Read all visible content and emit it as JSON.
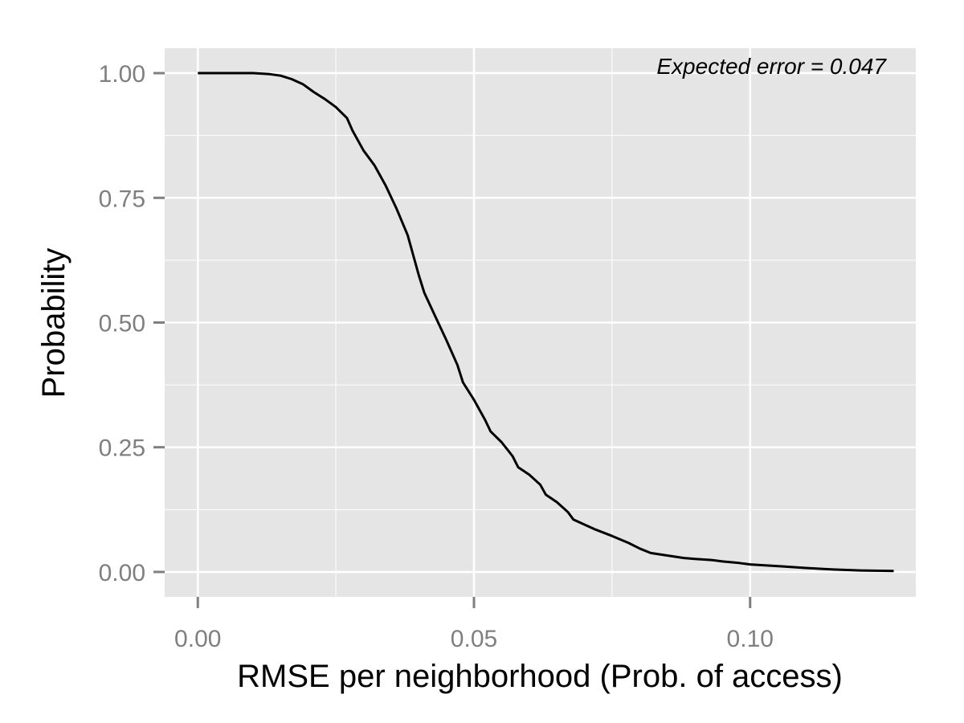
{
  "chart_data": {
    "type": "line",
    "title": "",
    "xlabel": "RMSE per neighborhood (Prob. of access)",
    "ylabel": "Probability",
    "xlim": [
      -0.006,
      0.13
    ],
    "ylim": [
      -0.05,
      1.05
    ],
    "x_ticks": [
      0.0,
      0.05,
      0.1
    ],
    "x_tick_labels": [
      "0.00",
      "0.05",
      "0.10"
    ],
    "y_ticks": [
      0.0,
      0.25,
      0.5,
      0.75,
      1.0
    ],
    "y_tick_labels": [
      "0.00",
      "0.25",
      "0.50",
      "0.75",
      "1.00"
    ],
    "grid": true,
    "annotation": "Expected error = 0.047",
    "colors": {
      "panel": "#e5e5e5",
      "grid": "#ffffff",
      "line": "#000000",
      "tick_text": "#7f7f7f"
    },
    "series": [
      {
        "x": [
          0.0,
          0.01,
          0.013,
          0.015,
          0.017,
          0.019,
          0.021,
          0.023,
          0.025,
          0.027,
          0.028,
          0.03,
          0.032,
          0.034,
          0.036,
          0.038,
          0.039,
          0.04,
          0.041,
          0.043,
          0.045,
          0.047,
          0.048,
          0.05,
          0.052,
          0.053,
          0.055,
          0.057,
          0.058,
          0.06,
          0.062,
          0.063,
          0.065,
          0.067,
          0.068,
          0.07,
          0.072,
          0.075,
          0.078,
          0.08,
          0.082,
          0.085,
          0.088,
          0.09,
          0.093,
          0.095,
          0.098,
          0.1,
          0.103,
          0.106,
          0.11,
          0.115,
          0.12,
          0.126
        ],
        "y": [
          1.0,
          1.0,
          0.998,
          0.995,
          0.988,
          0.978,
          0.962,
          0.948,
          0.932,
          0.91,
          0.885,
          0.845,
          0.815,
          0.775,
          0.728,
          0.675,
          0.635,
          0.595,
          0.56,
          0.512,
          0.465,
          0.415,
          0.38,
          0.345,
          0.305,
          0.282,
          0.26,
          0.232,
          0.21,
          0.195,
          0.175,
          0.155,
          0.14,
          0.12,
          0.105,
          0.095,
          0.085,
          0.072,
          0.058,
          0.047,
          0.038,
          0.033,
          0.028,
          0.026,
          0.024,
          0.021,
          0.018,
          0.015,
          0.013,
          0.011,
          0.008,
          0.005,
          0.003,
          0.002
        ]
      }
    ]
  }
}
